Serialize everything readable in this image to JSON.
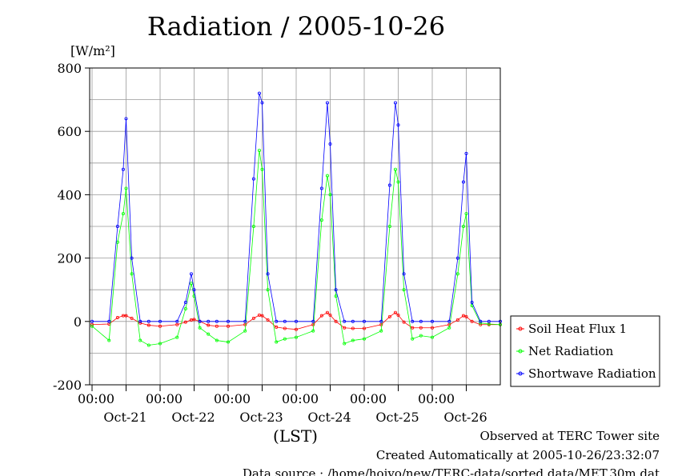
{
  "chart_data": {
    "type": "line",
    "title": "Radiation / 2005-10-26",
    "y_unit": "[W/m²]",
    "xlabel": "(LST)",
    "ylim": [
      -200,
      800
    ],
    "yticks": [
      "800",
      "600",
      "400",
      "200",
      "0",
      "-200"
    ],
    "xticks": [
      {
        "time": "00:00",
        "date": "Oct-21"
      },
      {
        "time": "00:00",
        "date": "Oct-22"
      },
      {
        "time": "00:00",
        "date": "Oct-23"
      },
      {
        "time": "00:00",
        "date": "Oct-24"
      },
      {
        "time": "00:00",
        "date": "Oct-25"
      },
      {
        "time": "00:00",
        "date": "Oct-26"
      }
    ],
    "grid": true,
    "legend_position": "right",
    "x": [
      "10-21 00:00",
      "10-21 06:00",
      "10-21 09:00",
      "10-21 11:00",
      "10-21 12:00",
      "10-21 14:00",
      "10-21 17:00",
      "10-21 20:00",
      "10-22 00:00",
      "10-22 06:00",
      "10-22 09:00",
      "10-22 11:00",
      "10-22 12:00",
      "10-22 14:00",
      "10-22 17:00",
      "10-22 20:00",
      "10-23 00:00",
      "10-23 06:00",
      "10-23 09:00",
      "10-23 11:00",
      "10-23 12:00",
      "10-23 14:00",
      "10-23 17:00",
      "10-23 20:00",
      "10-24 00:00",
      "10-24 06:00",
      "10-24 09:00",
      "10-24 11:00",
      "10-24 12:00",
      "10-24 14:00",
      "10-24 17:00",
      "10-24 20:00",
      "10-25 00:00",
      "10-25 06:00",
      "10-25 09:00",
      "10-25 11:00",
      "10-25 12:00",
      "10-25 14:00",
      "10-25 17:00",
      "10-25 20:00",
      "10-26 00:00",
      "10-26 06:00",
      "10-26 09:00",
      "10-26 11:00",
      "10-26 12:00",
      "10-26 14:00",
      "10-26 17:00",
      "10-26 20:00",
      "10-27 00:00"
    ],
    "series": [
      {
        "name": "Soil Heat Flux 1",
        "color": "#ff0000",
        "values": [
          -10,
          -8,
          12,
          18,
          18,
          10,
          -5,
          -12,
          -15,
          -10,
          -2,
          5,
          6,
          0,
          -12,
          -15,
          -15,
          -10,
          10,
          20,
          18,
          5,
          -18,
          -22,
          -25,
          -10,
          18,
          28,
          20,
          0,
          -20,
          -22,
          -22,
          -10,
          15,
          28,
          20,
          -2,
          -20,
          -20,
          -20,
          -10,
          5,
          18,
          15,
          0,
          -10,
          -10,
          -10
        ]
      },
      {
        "name": "Net Radiation",
        "color": "#00ff00",
        "values": [
          -15,
          -60,
          250,
          340,
          420,
          150,
          -60,
          -75,
          -70,
          -50,
          40,
          120,
          80,
          -20,
          -40,
          -60,
          -65,
          -30,
          300,
          540,
          480,
          100,
          -65,
          -55,
          -50,
          -30,
          320,
          460,
          400,
          80,
          -70,
          -60,
          -55,
          -30,
          300,
          480,
          440,
          100,
          -55,
          -45,
          -50,
          -20,
          150,
          300,
          340,
          50,
          -5,
          -8,
          -10
        ]
      },
      {
        "name": "Shortwave Radiation",
        "color": "#0000ff",
        "values": [
          0,
          0,
          300,
          480,
          640,
          200,
          0,
          0,
          0,
          0,
          60,
          150,
          100,
          0,
          0,
          0,
          0,
          0,
          450,
          720,
          690,
          150,
          0,
          0,
          0,
          0,
          420,
          690,
          560,
          100,
          0,
          0,
          0,
          0,
          430,
          690,
          620,
          150,
          0,
          0,
          0,
          0,
          200,
          440,
          530,
          60,
          0,
          0,
          0
        ]
      }
    ]
  },
  "credits": {
    "line1": "Observed at TERC Tower site",
    "line2": "Created Automatically at 2005-10-26/23:32:07",
    "line3": "Data source : /home/hoivo/new/TERC-data/sorted  data/MET.30m.dat"
  }
}
